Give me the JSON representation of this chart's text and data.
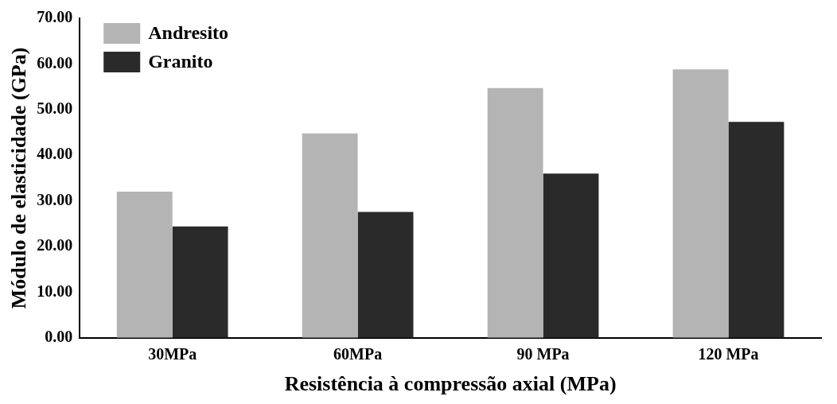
{
  "chart_data": {
    "type": "bar",
    "xlabel": "Resistência à compressão axial (MPa)",
    "ylabel": "Módulo de elasticidade (GPa)",
    "categories": [
      "30MPa",
      "60MPa",
      "90 MPa",
      "120 MPa"
    ],
    "series": [
      {
        "name": "Andresito",
        "color": "#b4b4b4",
        "values": [
          32.0,
          44.8,
          54.7,
          58.8
        ]
      },
      {
        "name": "Granito",
        "color": "#2a2a2a",
        "values": [
          24.4,
          27.6,
          36.0,
          47.3
        ]
      }
    ],
    "ylim": [
      0,
      70
    ],
    "yticks": [
      {
        "value": 0,
        "label": "0.00"
      },
      {
        "value": 10,
        "label": "10.00"
      },
      {
        "value": 20,
        "label": "20.00"
      },
      {
        "value": 30,
        "label": "30.00"
      },
      {
        "value": 40,
        "label": "40.00"
      },
      {
        "value": 50,
        "label": "50.00"
      },
      {
        "value": 60,
        "label": "60.00"
      },
      {
        "value": 70,
        "label": "70.00"
      }
    ],
    "grid": false,
    "legend": "top left"
  }
}
